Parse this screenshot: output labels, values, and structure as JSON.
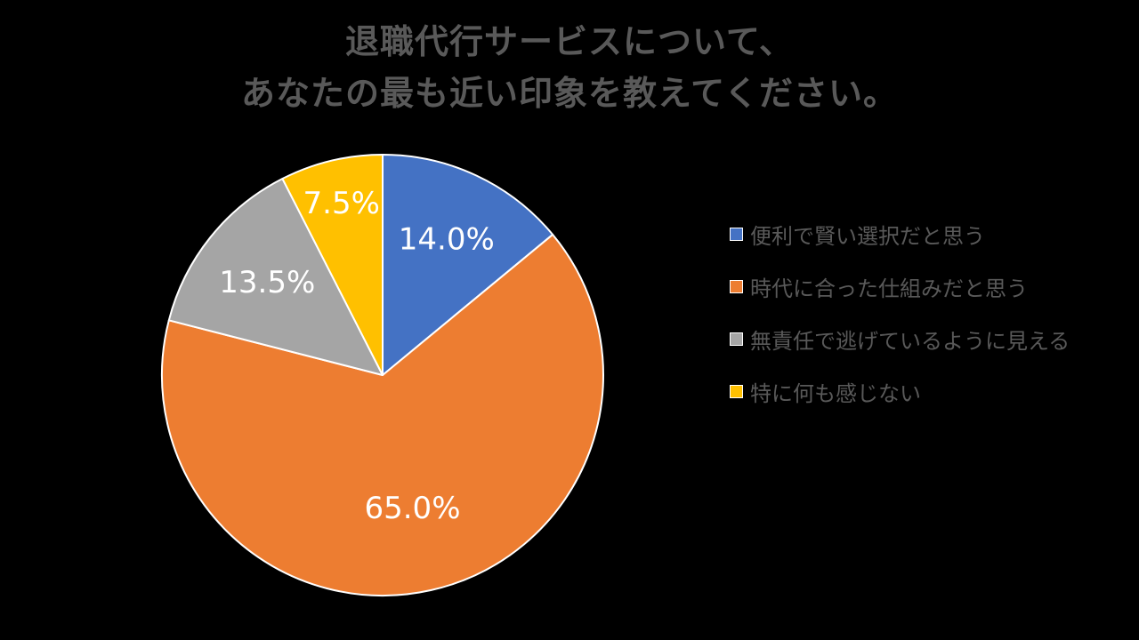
{
  "chart_data": {
    "type": "pie",
    "title": "退職代行サービスについて、\nあなたの最も近い印象を教えてください。",
    "title_lines": [
      "退職代行サービスについて、",
      "あなたの最も近い印象を教えてください。"
    ],
    "categories": [
      "便利で賢い選択だと思う",
      "時代に合った仕組みだと思う",
      "無責任で逃げているように見える",
      "特に何も感じない"
    ],
    "values": [
      14.0,
      65.0,
      13.5,
      7.5
    ],
    "value_labels": [
      "14.0%",
      "65.0%",
      "13.5%",
      "7.5%"
    ],
    "colors": [
      "#4472C4",
      "#ED7D31",
      "#A5A5A5",
      "#FFC000"
    ],
    "start_angle": "12 o'clock",
    "direction": "clockwise",
    "legend_position": "right"
  }
}
